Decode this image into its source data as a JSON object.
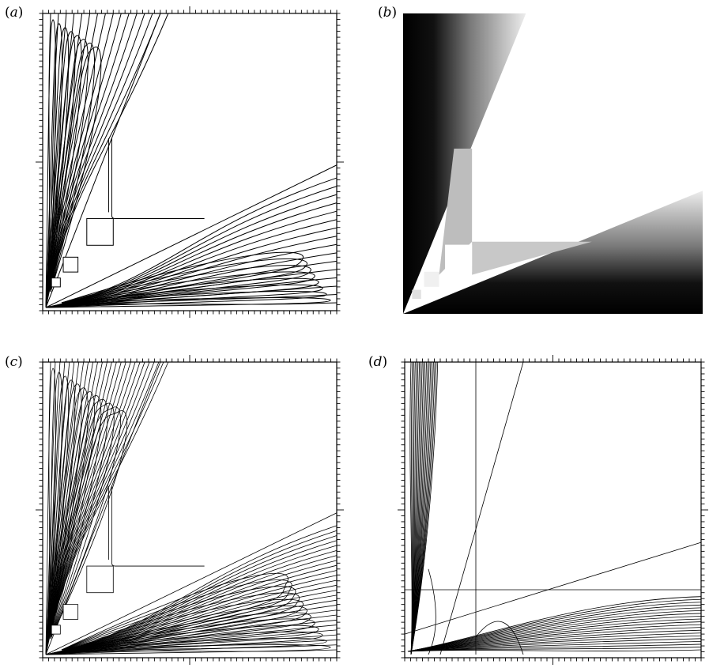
{
  "panels": [
    {
      "id": "a",
      "label_open": "(",
      "label_letter": "a",
      "label_close": ")",
      "kind": "contour"
    },
    {
      "id": "b",
      "label_open": "(",
      "label_letter": "b",
      "label_close": ")",
      "kind": "grayscale"
    },
    {
      "id": "c",
      "label_open": "(",
      "label_letter": "c",
      "label_close": ")",
      "kind": "contour-dense"
    },
    {
      "id": "d",
      "label_open": "(",
      "label_letter": "d",
      "label_close": ")",
      "kind": "curves"
    }
  ],
  "colors": {
    "ink": "#000000",
    "paper": "#ffffff"
  }
}
